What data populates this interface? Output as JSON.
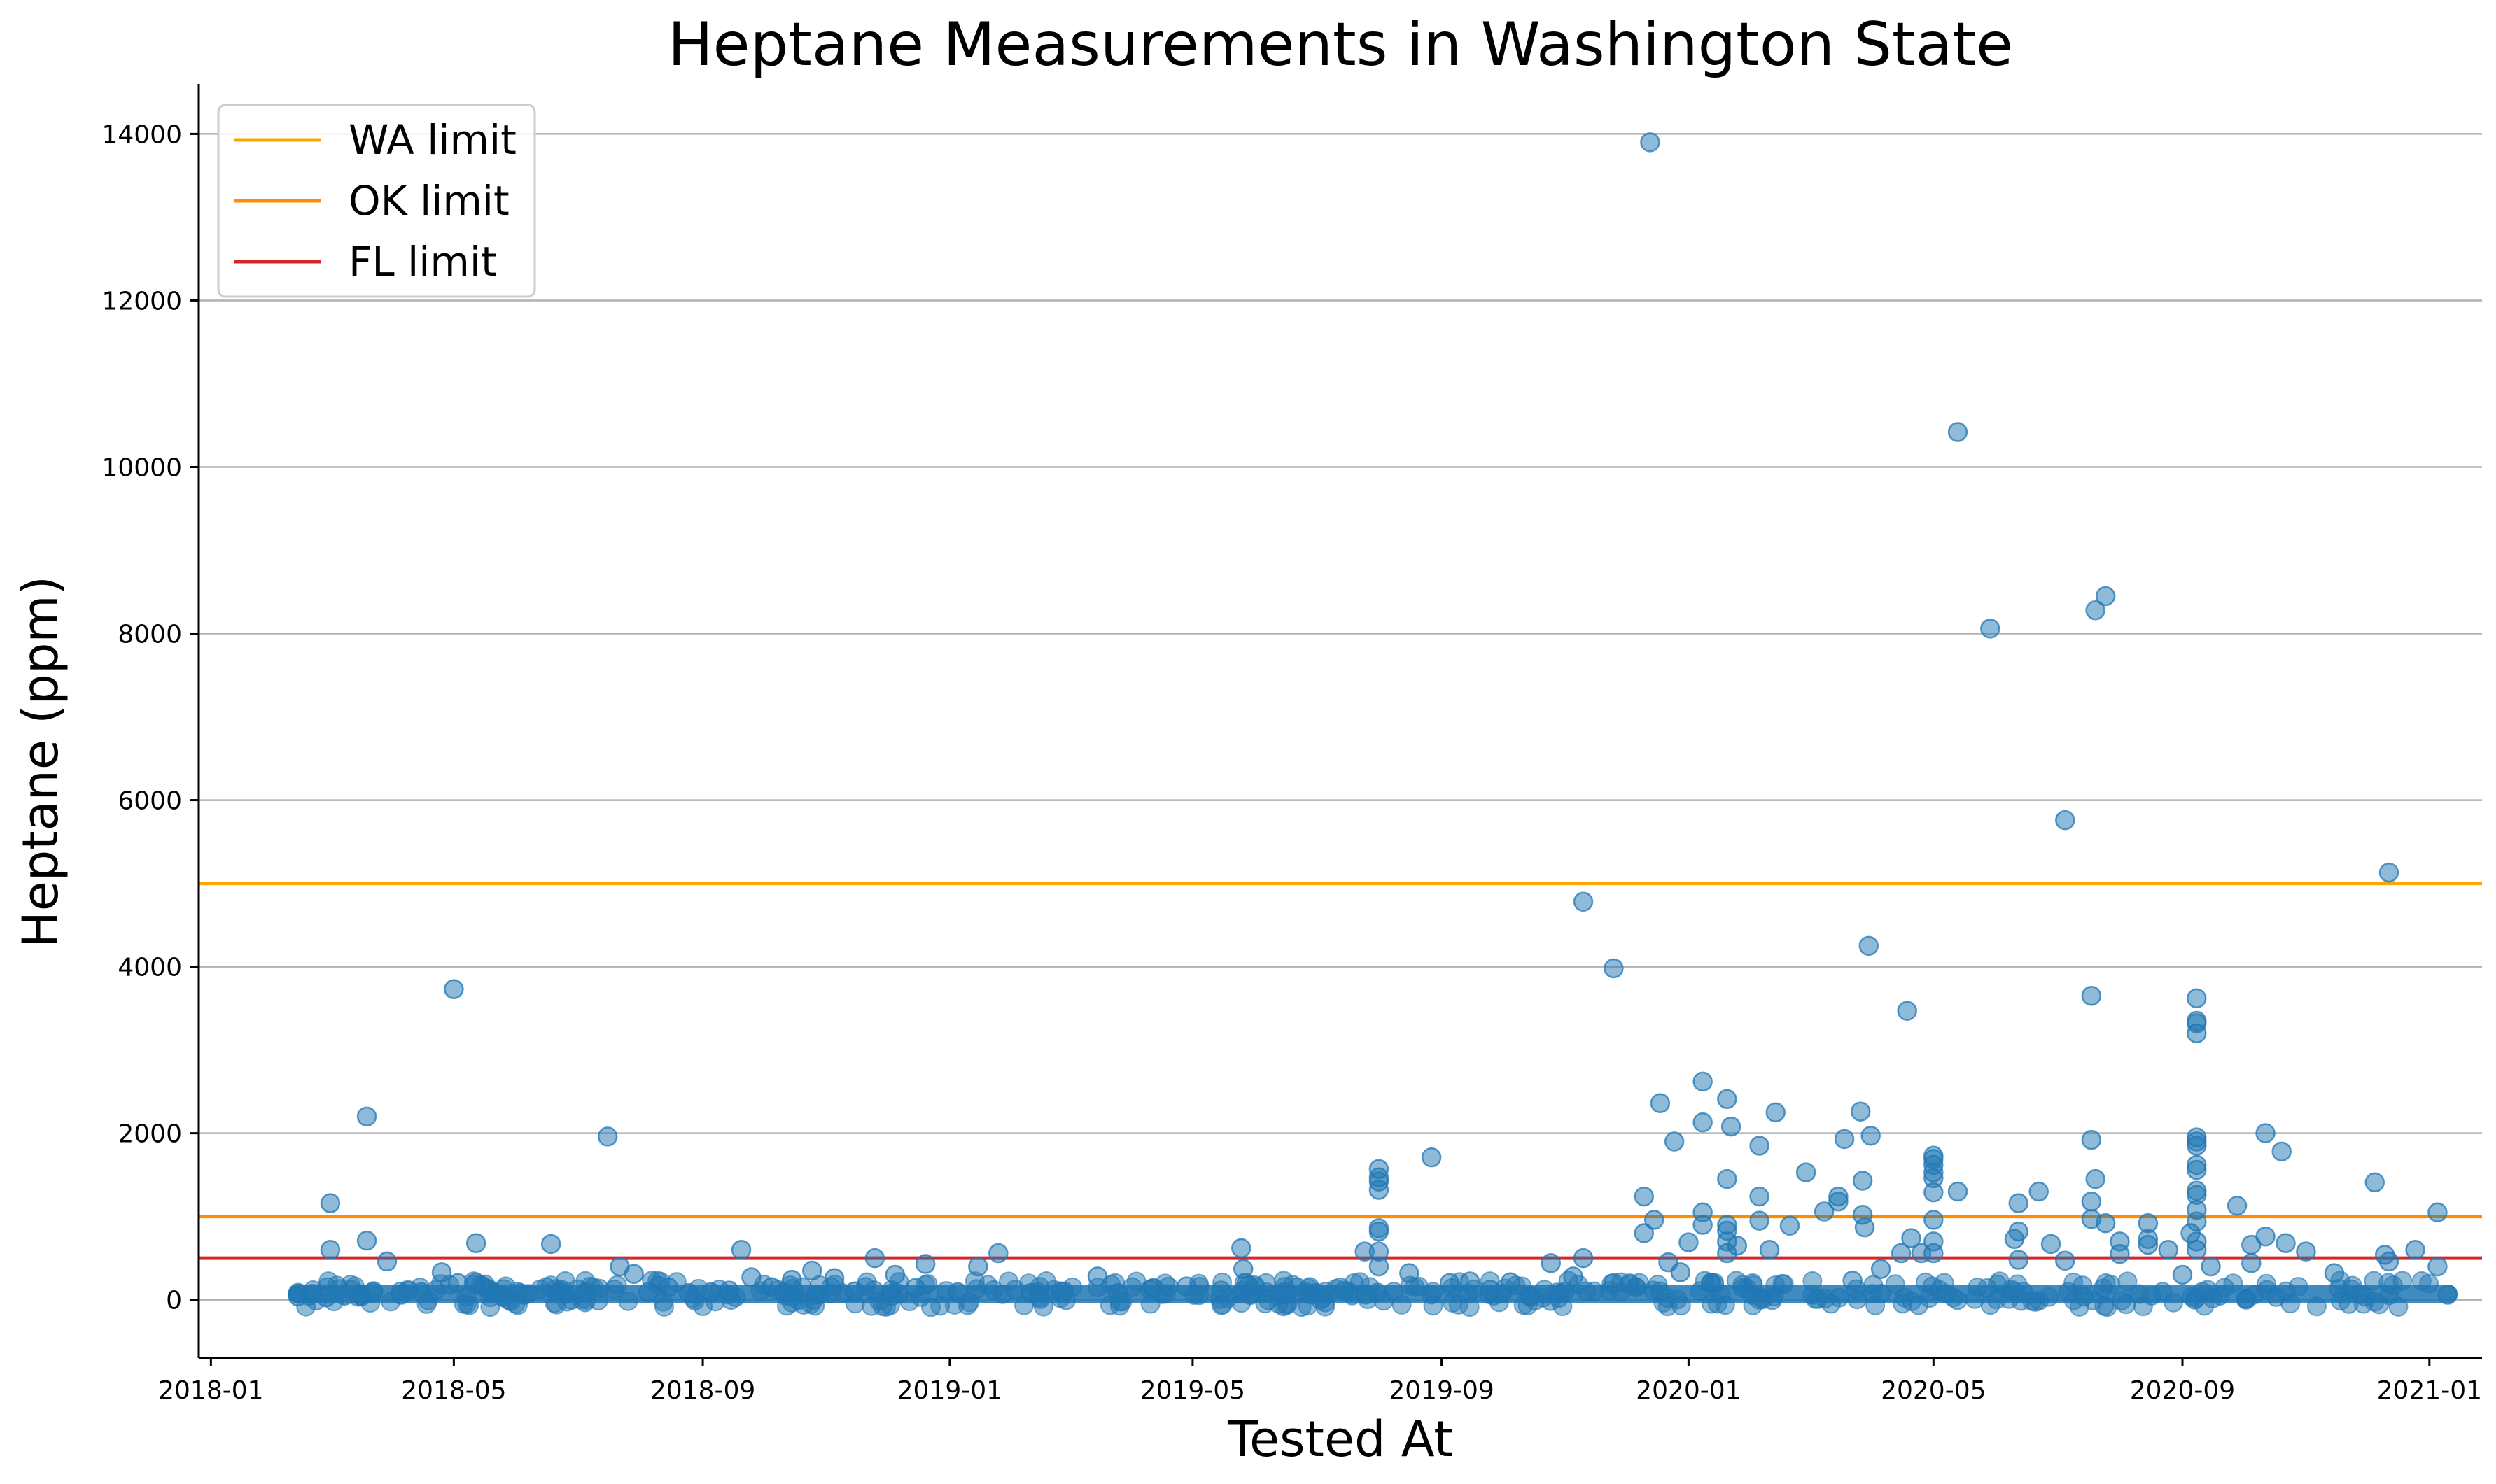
{
  "chart_data": {
    "type": "scatter",
    "title": "Heptane Measurements in Washington State",
    "xlabel": "Tested At",
    "ylabel": "Heptane (ppm)",
    "x_type": "date",
    "xlim": [
      "2017-12-26",
      "2021-01-27"
    ],
    "ylim": [
      -700,
      14600
    ],
    "x_ticks": [
      "2018-01",
      "2018-05",
      "2018-09",
      "2019-01",
      "2019-05",
      "2019-09",
      "2020-01",
      "2020-05",
      "2020-09",
      "2021-01"
    ],
    "y_ticks": [
      0,
      2000,
      4000,
      6000,
      8000,
      10000,
      12000,
      14000
    ],
    "grid": "horizontal",
    "legend_position": "top-left",
    "reference_lines": [
      {
        "name": "WA limit",
        "y": 5000,
        "color": "#FFA500"
      },
      {
        "name": "OK limit",
        "y": 1000,
        "color": "#FF8C00"
      },
      {
        "name": "FL limit",
        "y": 500,
        "color": "#D62728"
      }
    ],
    "series": [
      {
        "color": "#1F77B4",
        "points": [
          [
            "2018-02-13",
            40
          ],
          [
            "2018-02-20",
            70
          ],
          [
            "2018-02-27",
            30
          ],
          [
            "2018-03-01",
            1160
          ],
          [
            "2018-03-01",
            600
          ],
          [
            "2018-03-08",
            50
          ],
          [
            "2018-03-19",
            2200
          ],
          [
            "2018-03-19",
            710
          ],
          [
            "2018-03-22",
            90
          ],
          [
            "2018-03-29",
            460
          ],
          [
            "2018-04-05",
            60
          ],
          [
            "2018-04-15",
            90
          ],
          [
            "2018-04-25",
            330
          ],
          [
            "2018-05-01",
            3730
          ],
          [
            "2018-05-03",
            200
          ],
          [
            "2018-05-12",
            680
          ],
          [
            "2018-05-20",
            80
          ],
          [
            "2018-06-05",
            60
          ],
          [
            "2018-06-18",
            670
          ],
          [
            "2018-06-25",
            70
          ],
          [
            "2018-07-05",
            90
          ],
          [
            "2018-07-16",
            1960
          ],
          [
            "2018-07-22",
            400
          ],
          [
            "2018-07-29",
            310
          ],
          [
            "2018-08-05",
            90
          ],
          [
            "2018-08-15",
            150
          ],
          [
            "2018-08-25",
            80
          ],
          [
            "2018-09-05",
            90
          ],
          [
            "2018-09-14",
            110
          ],
          [
            "2018-09-20",
            600
          ],
          [
            "2018-09-25",
            270
          ],
          [
            "2018-10-05",
            150
          ],
          [
            "2018-10-15",
            240
          ],
          [
            "2018-10-25",
            350
          ],
          [
            "2018-11-05",
            260
          ],
          [
            "2018-11-15",
            100
          ],
          [
            "2018-11-25",
            500
          ],
          [
            "2018-12-05",
            300
          ],
          [
            "2018-12-15",
            140
          ],
          [
            "2018-12-20",
            430
          ],
          [
            "2019-01-05",
            90
          ],
          [
            "2019-01-15",
            400
          ],
          [
            "2019-01-25",
            560
          ],
          [
            "2019-02-10",
            80
          ],
          [
            "2019-02-25",
            100
          ],
          [
            "2019-03-15",
            280
          ],
          [
            "2019-03-25",
            80
          ],
          [
            "2019-04-10",
            120
          ],
          [
            "2019-04-28",
            160
          ],
          [
            "2019-05-15",
            110
          ],
          [
            "2019-05-25",
            620
          ],
          [
            "2019-05-26",
            370
          ],
          [
            "2019-06-15",
            90
          ],
          [
            "2019-07-01",
            80
          ],
          [
            "2019-07-15",
            110
          ],
          [
            "2019-07-25",
            580
          ],
          [
            "2019-08-01",
            1570
          ],
          [
            "2019-08-01",
            1470
          ],
          [
            "2019-08-01",
            1420
          ],
          [
            "2019-08-01",
            1320
          ],
          [
            "2019-08-01",
            860
          ],
          [
            "2019-08-01",
            820
          ],
          [
            "2019-08-01",
            580
          ],
          [
            "2019-08-01",
            400
          ],
          [
            "2019-08-16",
            320
          ],
          [
            "2019-08-27",
            1710
          ],
          [
            "2019-09-05",
            200
          ],
          [
            "2019-09-15",
            220
          ],
          [
            "2019-09-25",
            120
          ],
          [
            "2019-10-05",
            210
          ],
          [
            "2019-10-15",
            40
          ],
          [
            "2019-10-25",
            440
          ],
          [
            "2019-11-05",
            280
          ],
          [
            "2019-11-10",
            4780
          ],
          [
            "2019-11-10",
            500
          ],
          [
            "2019-11-25",
            3980
          ],
          [
            "2019-11-25",
            200
          ],
          [
            "2019-12-10",
            1240
          ],
          [
            "2019-12-10",
            800
          ],
          [
            "2019-12-13",
            13900
          ],
          [
            "2019-12-15",
            960
          ],
          [
            "2019-12-18",
            2360
          ],
          [
            "2019-12-22",
            450
          ],
          [
            "2019-12-25",
            1900
          ],
          [
            "2019-12-28",
            330
          ],
          [
            "2020-01-01",
            690
          ],
          [
            "2020-01-08",
            2620
          ],
          [
            "2020-01-08",
            2130
          ],
          [
            "2020-01-08",
            1050
          ],
          [
            "2020-01-08",
            900
          ],
          [
            "2020-01-12",
            200
          ],
          [
            "2020-01-20",
            2410
          ],
          [
            "2020-01-20",
            1450
          ],
          [
            "2020-01-20",
            900
          ],
          [
            "2020-01-20",
            830
          ],
          [
            "2020-01-20",
            700
          ],
          [
            "2020-01-20",
            560
          ],
          [
            "2020-01-22",
            2080
          ],
          [
            "2020-01-25",
            650
          ],
          [
            "2020-02-05",
            1850
          ],
          [
            "2020-02-05",
            1240
          ],
          [
            "2020-02-05",
            950
          ],
          [
            "2020-02-10",
            600
          ],
          [
            "2020-02-13",
            2250
          ],
          [
            "2020-02-20",
            890
          ],
          [
            "2020-02-28",
            1530
          ],
          [
            "2020-03-08",
            1060
          ],
          [
            "2020-03-15",
            1240
          ],
          [
            "2020-03-15",
            1180
          ],
          [
            "2020-03-18",
            1930
          ],
          [
            "2020-03-22",
            230
          ],
          [
            "2020-03-26",
            2260
          ],
          [
            "2020-03-27",
            1430
          ],
          [
            "2020-03-27",
            1020
          ],
          [
            "2020-03-28",
            870
          ],
          [
            "2020-03-30",
            4250
          ],
          [
            "2020-03-31",
            1970
          ],
          [
            "2020-04-05",
            370
          ],
          [
            "2020-04-15",
            560
          ],
          [
            "2020-04-18",
            3470
          ],
          [
            "2020-04-20",
            740
          ],
          [
            "2020-04-25",
            560
          ],
          [
            "2020-05-01",
            1730
          ],
          [
            "2020-05-01",
            1690
          ],
          [
            "2020-05-01",
            1620
          ],
          [
            "2020-05-01",
            1530
          ],
          [
            "2020-05-01",
            1460
          ],
          [
            "2020-05-01",
            1290
          ],
          [
            "2020-05-01",
            960
          ],
          [
            "2020-05-01",
            700
          ],
          [
            "2020-05-01",
            560
          ],
          [
            "2020-05-13",
            10420
          ],
          [
            "2020-05-13",
            1300
          ],
          [
            "2020-05-29",
            8060
          ],
          [
            "2020-06-10",
            730
          ],
          [
            "2020-06-12",
            1160
          ],
          [
            "2020-06-12",
            820
          ],
          [
            "2020-06-12",
            480
          ],
          [
            "2020-06-22",
            1300
          ],
          [
            "2020-06-28",
            670
          ],
          [
            "2020-07-05",
            5760
          ],
          [
            "2020-07-05",
            470
          ],
          [
            "2020-07-18",
            3650
          ],
          [
            "2020-07-18",
            1920
          ],
          [
            "2020-07-18",
            1180
          ],
          [
            "2020-07-18",
            970
          ],
          [
            "2020-07-20",
            8280
          ],
          [
            "2020-07-20",
            1450
          ],
          [
            "2020-07-25",
            8450
          ],
          [
            "2020-07-25",
            920
          ],
          [
            "2020-08-01",
            700
          ],
          [
            "2020-08-01",
            550
          ],
          [
            "2020-08-15",
            920
          ],
          [
            "2020-08-15",
            730
          ],
          [
            "2020-08-15",
            660
          ],
          [
            "2020-08-25",
            600
          ],
          [
            "2020-09-01",
            300
          ],
          [
            "2020-09-05",
            800
          ],
          [
            "2020-09-08",
            3620
          ],
          [
            "2020-09-08",
            3350
          ],
          [
            "2020-09-08",
            3320
          ],
          [
            "2020-09-08",
            3200
          ],
          [
            "2020-09-08",
            1950
          ],
          [
            "2020-09-08",
            1900
          ],
          [
            "2020-09-08",
            1850
          ],
          [
            "2020-09-08",
            1620
          ],
          [
            "2020-09-08",
            1560
          ],
          [
            "2020-09-08",
            1310
          ],
          [
            "2020-09-08",
            1260
          ],
          [
            "2020-09-08",
            1080
          ],
          [
            "2020-09-08",
            940
          ],
          [
            "2020-09-08",
            700
          ],
          [
            "2020-09-08",
            600
          ],
          [
            "2020-09-15",
            400
          ],
          [
            "2020-09-28",
            1130
          ],
          [
            "2020-10-05",
            660
          ],
          [
            "2020-10-05",
            440
          ],
          [
            "2020-10-12",
            2000
          ],
          [
            "2020-10-12",
            760
          ],
          [
            "2020-10-20",
            1780
          ],
          [
            "2020-10-22",
            680
          ],
          [
            "2020-11-01",
            580
          ],
          [
            "2020-11-15",
            320
          ],
          [
            "2020-12-05",
            1410
          ],
          [
            "2020-12-10",
            540
          ],
          [
            "2020-12-12",
            5130
          ],
          [
            "2020-12-12",
            460
          ],
          [
            "2020-12-25",
            600
          ],
          [
            "2021-01-05",
            1050
          ],
          [
            "2021-01-05",
            400
          ],
          [
            "2021-01-10",
            60
          ]
        ],
        "dense_band": {
          "x_start": "2018-02-13",
          "x_end": "2021-01-10",
          "y_min": -40,
          "y_max": 180
        }
      }
    ]
  }
}
